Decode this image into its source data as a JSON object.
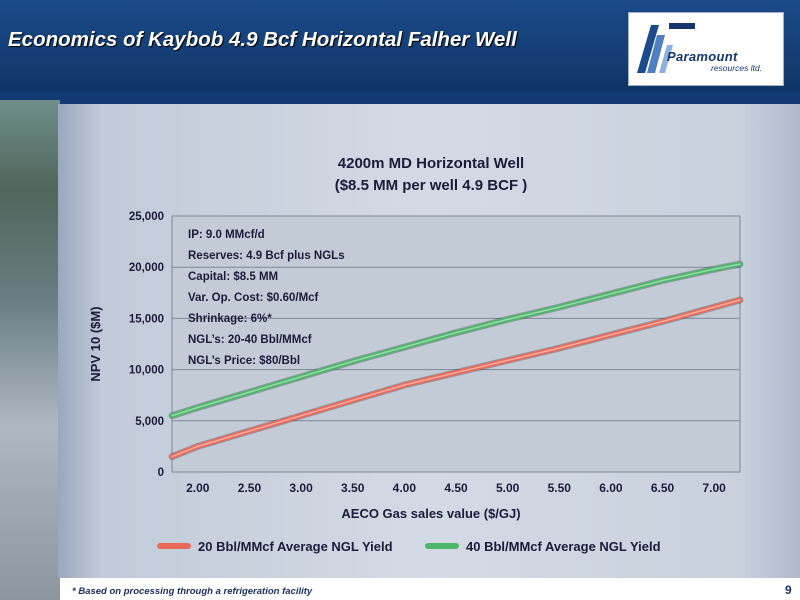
{
  "slide": {
    "title": "Economics of Kaybob 4.9 Bcf Horizontal Falher Well",
    "logo_name": "Paramount",
    "logo_sub": "resources ltd.",
    "footnote": "* Based on processing through a refrigeration facility",
    "page_number": "9"
  },
  "colors": {
    "header": "#123a72",
    "series_20": "#ea6a5a",
    "series_40": "#4cb76a"
  },
  "chart_data": {
    "type": "line",
    "title": "4200m MD Horizontal Well",
    "subtitle": "($8.5 MM per well 4.9 BCF )",
    "xlabel": "AECO Gas sales value ($/GJ)",
    "ylabel": "NPV 10 ($M)",
    "xlim": [
      1.75,
      7.25
    ],
    "ylim": [
      0,
      25000
    ],
    "x_ticks": [
      "2.00",
      "2.50",
      "3.00",
      "3.50",
      "4.00",
      "4.50",
      "5.00",
      "5.50",
      "6.00",
      "6.50",
      "7.00"
    ],
    "y_ticks": [
      "0",
      "5,000",
      "10,000",
      "15,000",
      "20,000",
      "25,000"
    ],
    "grid": true,
    "legend_position": "bottom",
    "annotations": [
      "IP: 9.0 MMcf/d",
      "Reserves: 4.9 Bcf plus NGLs",
      "Capital: $8.5 MM",
      "Var. Op. Cost: $0.60/Mcf",
      "Shrinkage: 6%*",
      "NGL’s: 20-40 Bbl/MMcf",
      "NGL’s Price: $80/Bbl"
    ],
    "x": [
      1.75,
      2.0,
      2.5,
      3.0,
      3.5,
      4.0,
      4.5,
      5.0,
      5.5,
      6.0,
      6.5,
      7.0,
      7.25
    ],
    "series": [
      {
        "name": "20 Bbl/MMcf Average NGL Yield",
        "values": [
          1500,
          2500,
          4000,
          5500,
          7000,
          8500,
          9700,
          10900,
          12100,
          13400,
          14700,
          16100,
          16800
        ]
      },
      {
        "name": "40 Bbl/MMcf Average NGL Yield",
        "values": [
          5500,
          6300,
          7800,
          9300,
          10800,
          12200,
          13600,
          14900,
          16100,
          17400,
          18700,
          19800,
          20300
        ]
      }
    ]
  }
}
